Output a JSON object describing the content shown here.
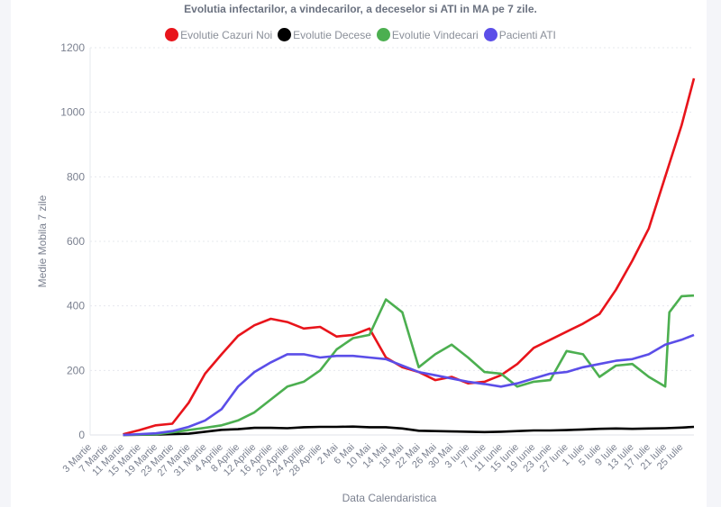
{
  "chart_data": {
    "type": "line",
    "title": "Evolutia infectarilor, a vindecarilor, a deceselor si ATI in MA pe 7 zile.",
    "xlabel": "Data Calendaristica",
    "ylabel": "Medie Mobila 7 zile",
    "ylim": [
      0,
      1200
    ],
    "yticks": [
      0,
      200,
      400,
      600,
      800,
      1000,
      1200
    ],
    "grid": true,
    "legend": "top",
    "xticks": [
      "3 Martie",
      "7 Martie",
      "11 Martie",
      "15 Martie",
      "19 Martie",
      "23 Martie",
      "27 Martie",
      "31 Martie",
      "4 Aprilie",
      "8 Aprilie",
      "12 Aprilie",
      "16 Aprilie",
      "20 Aprilie",
      "24 Aprilie",
      "28 Aprilie",
      "2 Mai",
      "6 Mai",
      "10 Mai",
      "14 Mai",
      "18 Mai",
      "22 Mai",
      "26 Mai",
      "30 Mai",
      "3 Iunie",
      "7 Iunie",
      "11 Iunie",
      "15 Iunie",
      "19 Iunie",
      "23 Iunie",
      "27 Iunie",
      "1 Iulie",
      "5 Iulie",
      "9 Iulie",
      "13 Iulie",
      "17 Iulie",
      "21 Iulie",
      "25 Iulie"
    ],
    "series": [
      {
        "name": "Evolutie Cazuri Noi",
        "color": "#e8141b",
        "points": [
          [
            "11 Martie",
            2
          ],
          [
            "15 Martie",
            15
          ],
          [
            "19 Martie",
            30
          ],
          [
            "23 Martie",
            35
          ],
          [
            "27 Martie",
            100
          ],
          [
            "31 Martie",
            190
          ],
          [
            "4 Aprilie",
            250
          ],
          [
            "8 Aprilie",
            307
          ],
          [
            "12 Aprilie",
            340
          ],
          [
            "16 Aprilie",
            360
          ],
          [
            "20 Aprilie",
            350
          ],
          [
            "24 Aprilie",
            330
          ],
          [
            "28 Aprilie",
            335
          ],
          [
            "2 Mai",
            305
          ],
          [
            "6 Mai",
            310
          ],
          [
            "10 Mai",
            330
          ],
          [
            "14 Mai",
            240
          ],
          [
            "18 Mai",
            210
          ],
          [
            "22 Mai",
            195
          ],
          [
            "26 Mai",
            170
          ],
          [
            "30 Mai",
            180
          ],
          [
            "3 Iunie",
            160
          ],
          [
            "7 Iunie",
            165
          ],
          [
            "11 Iunie",
            185
          ],
          [
            "15 Iunie",
            220
          ],
          [
            "19 Iunie",
            270
          ],
          [
            "23 Iunie",
            295
          ],
          [
            "27 Iunie",
            320
          ],
          [
            "1 Iulie",
            345
          ],
          [
            "5 Iulie",
            375
          ],
          [
            "9 Iulie",
            450
          ],
          [
            "13 Iulie",
            540
          ],
          [
            "17 Iulie",
            640
          ],
          [
            "21 Iulie",
            800
          ],
          [
            "25 Iulie",
            960
          ],
          [
            "28 Iulie",
            1105
          ]
        ]
      },
      {
        "name": "Evolutie Decese",
        "color": "#000000",
        "points": [
          [
            "11 Martie",
            0
          ],
          [
            "19 Martie",
            1
          ],
          [
            "27 Martie",
            4
          ],
          [
            "31 Martie",
            10
          ],
          [
            "4 Aprilie",
            16
          ],
          [
            "8 Aprilie",
            18
          ],
          [
            "12 Aprilie",
            22
          ],
          [
            "16 Aprilie",
            22
          ],
          [
            "20 Aprilie",
            21
          ],
          [
            "24 Aprilie",
            24
          ],
          [
            "28 Aprilie",
            25
          ],
          [
            "2 Mai",
            25
          ],
          [
            "6 Mai",
            26
          ],
          [
            "10 Mai",
            24
          ],
          [
            "14 Mai",
            24
          ],
          [
            "18 Mai",
            20
          ],
          [
            "22 Mai",
            13
          ],
          [
            "26 Mai",
            12
          ],
          [
            "30 Mai",
            11
          ],
          [
            "3 Iunie",
            10
          ],
          [
            "7 Iunie",
            9
          ],
          [
            "11 Iunie",
            10
          ],
          [
            "15 Iunie",
            12
          ],
          [
            "19 Iunie",
            14
          ],
          [
            "23 Iunie",
            14
          ],
          [
            "27 Iunie",
            15
          ],
          [
            "1 Iulie",
            17
          ],
          [
            "5 Iulie",
            19
          ],
          [
            "9 Iulie",
            20
          ],
          [
            "13 Iulie",
            19
          ],
          [
            "17 Iulie",
            20
          ],
          [
            "21 Iulie",
            21
          ],
          [
            "25 Iulie",
            23
          ],
          [
            "28 Iulie",
            25
          ]
        ]
      },
      {
        "name": "Evolutie Vindecari",
        "color": "#4caf50",
        "points": [
          [
            "11 Martie",
            0
          ],
          [
            "19 Martie",
            2
          ],
          [
            "23 Martie",
            8
          ],
          [
            "27 Martie",
            15
          ],
          [
            "31 Martie",
            22
          ],
          [
            "4 Aprilie",
            30
          ],
          [
            "8 Aprilie",
            45
          ],
          [
            "12 Aprilie",
            70
          ],
          [
            "16 Aprilie",
            110
          ],
          [
            "20 Aprilie",
            150
          ],
          [
            "24 Aprilie",
            165
          ],
          [
            "28 Aprilie",
            200
          ],
          [
            "2 Mai",
            265
          ],
          [
            "6 Mai",
            300
          ],
          [
            "10 Mai",
            310
          ],
          [
            "14 Mai",
            420
          ],
          [
            "18 Mai",
            380
          ],
          [
            "22 Mai",
            210
          ],
          [
            "26 Mai",
            250
          ],
          [
            "30 Mai",
            280
          ],
          [
            "3 Iunie",
            240
          ],
          [
            "7 Iunie",
            195
          ],
          [
            "11 Iunie",
            190
          ],
          [
            "15 Iunie",
            150
          ],
          [
            "19 Iunie",
            165
          ],
          [
            "23 Iunie",
            170
          ],
          [
            "27 Iunie",
            260
          ],
          [
            "1 Iulie",
            250
          ],
          [
            "5 Iulie",
            180
          ],
          [
            "9 Iulie",
            215
          ],
          [
            "13 Iulie",
            220
          ],
          [
            "17 Iulie",
            180
          ],
          [
            "21 Iulie",
            150
          ],
          [
            "22 Iulie",
            380
          ],
          [
            "25 Iulie",
            430
          ],
          [
            "28 Iulie",
            432
          ]
        ]
      },
      {
        "name": "Pacienti ATI",
        "color": "#5b4ee8",
        "points": [
          [
            "11 Martie",
            0
          ],
          [
            "19 Martie",
            5
          ],
          [
            "23 Martie",
            12
          ],
          [
            "27 Martie",
            25
          ],
          [
            "31 Martie",
            45
          ],
          [
            "4 Aprilie",
            80
          ],
          [
            "8 Aprilie",
            150
          ],
          [
            "12 Aprilie",
            195
          ],
          [
            "16 Aprilie",
            225
          ],
          [
            "20 Aprilie",
            250
          ],
          [
            "24 Aprilie",
            250
          ],
          [
            "28 Aprilie",
            240
          ],
          [
            "2 Mai",
            245
          ],
          [
            "6 Mai",
            245
          ],
          [
            "10 Mai",
            240
          ],
          [
            "14 Mai",
            235
          ],
          [
            "18 Mai",
            215
          ],
          [
            "22 Mai",
            195
          ],
          [
            "26 Mai",
            185
          ],
          [
            "30 Mai",
            175
          ],
          [
            "3 Iunie",
            165
          ],
          [
            "7 Iunie",
            158
          ],
          [
            "11 Iunie",
            150
          ],
          [
            "15 Iunie",
            160
          ],
          [
            "19 Iunie",
            175
          ],
          [
            "23 Iunie",
            190
          ],
          [
            "27 Iunie",
            195
          ],
          [
            "1 Iulie",
            210
          ],
          [
            "5 Iulie",
            220
          ],
          [
            "9 Iulie",
            230
          ],
          [
            "13 Iulie",
            235
          ],
          [
            "17 Iulie",
            250
          ],
          [
            "21 Iulie",
            280
          ],
          [
            "25 Iulie",
            295
          ],
          [
            "28 Iulie",
            310
          ]
        ]
      }
    ]
  }
}
